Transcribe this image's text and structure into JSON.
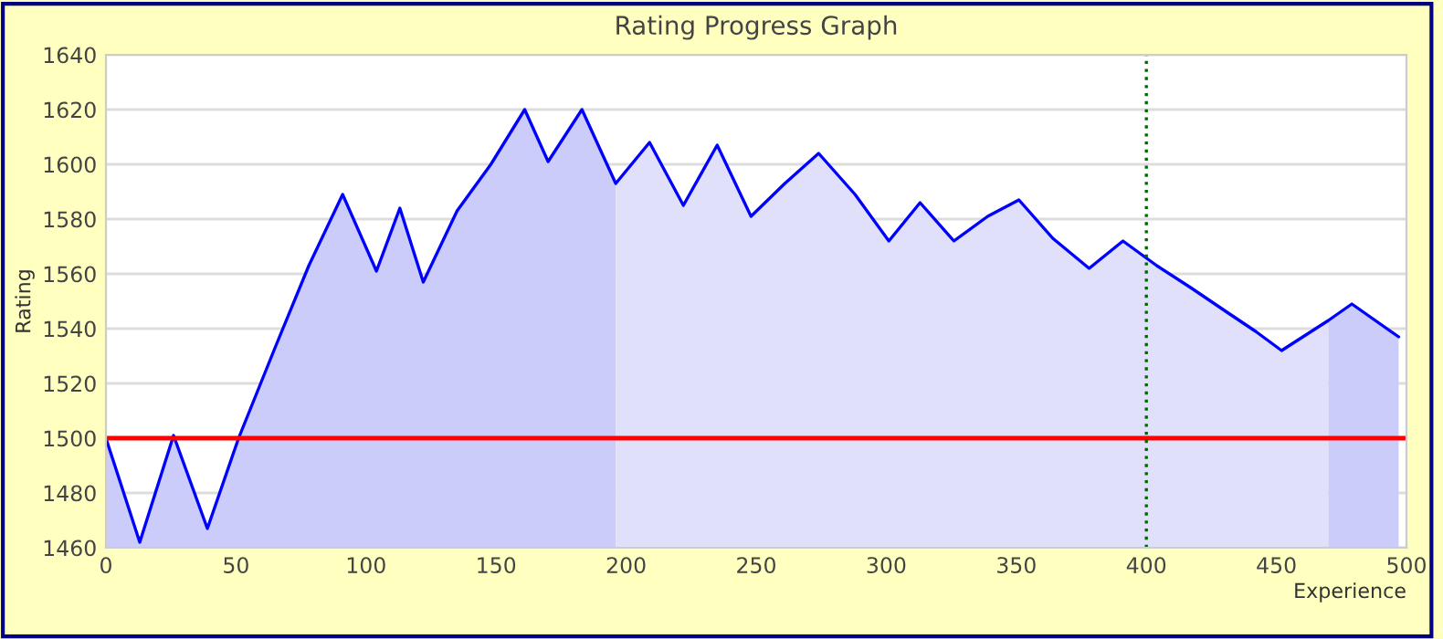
{
  "chart_data": {
    "type": "area",
    "title": "Rating Progress Graph",
    "xlabel": "Experience",
    "ylabel": "Rating",
    "xlim": [
      0,
      500
    ],
    "xticks": [
      0,
      50,
      100,
      150,
      200,
      250,
      300,
      350,
      400,
      450,
      500
    ],
    "ylim": [
      1460,
      1640
    ],
    "yticks": [
      1460,
      1480,
      1500,
      1520,
      1540,
      1560,
      1580,
      1600,
      1620,
      1640
    ],
    "grid": "y",
    "series": [
      {
        "color": "#ccccfa",
        "x": [
          0,
          13,
          26,
          39,
          51,
          65,
          78,
          91,
          104,
          113,
          122,
          135,
          148,
          161,
          170,
          183,
          196
        ],
        "values": [
          1500,
          1462,
          1501,
          1467,
          1500,
          1533,
          1563,
          1589,
          1561,
          1584,
          1557,
          1583,
          1600,
          1620,
          1601,
          1620,
          1593
        ]
      },
      {
        "color": "#e0e0fa",
        "x": [
          196,
          209,
          222,
          235,
          248,
          261,
          274,
          288,
          301,
          313,
          326,
          339,
          351,
          364,
          378,
          391,
          404,
          417,
          431,
          442,
          452,
          470
        ],
        "values": [
          1593,
          1608,
          1585,
          1607,
          1581,
          1593,
          1604,
          1589,
          1572,
          1586,
          1572,
          1581,
          1587,
          1573,
          1562,
          1572,
          1563,
          1555,
          1546,
          1539,
          1532,
          1543
        ]
      },
      {
        "color": "#ccccfa",
        "x": [
          470,
          479,
          497
        ],
        "values": [
          1543,
          1549,
          1537
        ]
      },
      {
        "type": "line",
        "color": "#0000ff",
        "x": [
          0,
          13,
          26,
          39,
          51,
          65,
          78,
          91,
          104,
          113,
          122,
          135,
          148,
          161,
          170,
          183,
          196,
          209,
          222,
          235,
          248,
          261,
          274,
          288,
          301,
          313,
          326,
          339,
          351,
          364,
          378,
          391,
          404,
          417,
          431,
          442,
          452,
          470,
          479,
          497
        ],
        "values": [
          1500,
          1462,
          1501,
          1467,
          1500,
          1533,
          1563,
          1589,
          1561,
          1584,
          1557,
          1583,
          1600,
          1620,
          1601,
          1620,
          1593,
          1608,
          1585,
          1607,
          1581,
          1593,
          1604,
          1589,
          1572,
          1586,
          1572,
          1581,
          1587,
          1573,
          1562,
          1572,
          1563,
          1555,
          1546,
          1539,
          1532,
          1543,
          1549,
          1537
        ]
      }
    ],
    "ref_lines": [
      {
        "axis": "y",
        "value": 1500,
        "color": "#ff0000",
        "line_style": "solid"
      },
      {
        "axis": "x",
        "value": 400,
        "color": "#006600",
        "line_style": "dotted"
      }
    ]
  }
}
